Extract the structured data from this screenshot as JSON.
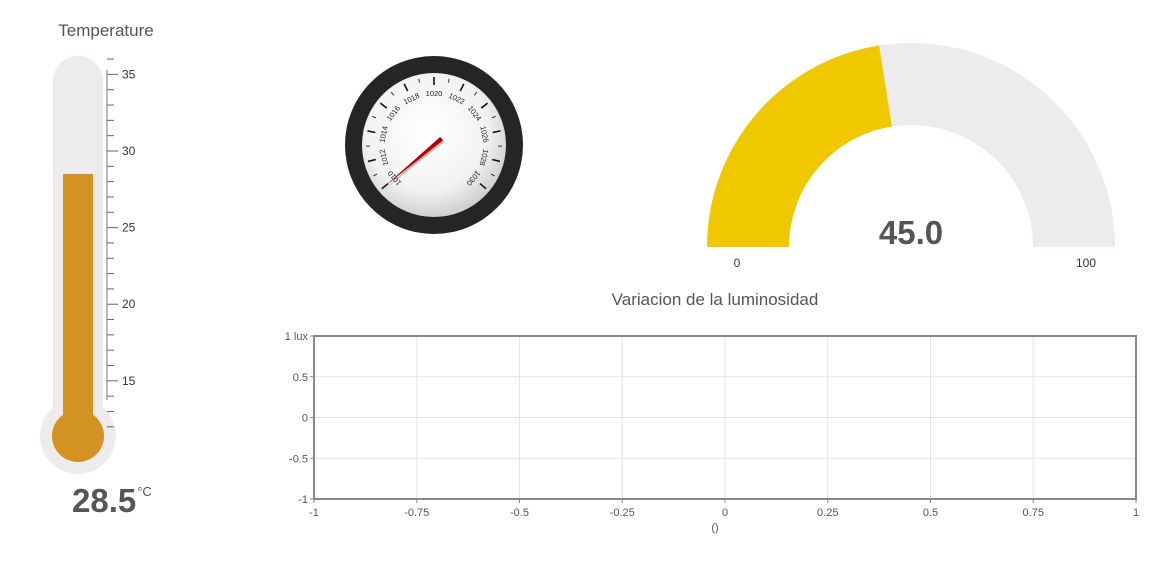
{
  "thermometer": {
    "title": "Temperature",
    "value": "28.5",
    "unit": "°C",
    "level": 28.5,
    "scale_min": 11.4,
    "scale_max": 36.2,
    "major_ticks": [
      35,
      30,
      25,
      20,
      15
    ],
    "tick_labels": [
      "35",
      "30",
      "25",
      "20",
      "15"
    ],
    "fill_color": "#D39322",
    "track_color": "#EDEBEB"
  },
  "barometer": {
    "tick_labels": [
      "1010",
      "1012",
      "1014",
      "1016",
      "1018",
      "1020",
      "1022",
      "1024",
      "1026",
      "1028",
      "1030"
    ],
    "value": 1010,
    "needle_color": "#B80000",
    "rim_color": "#252525"
  },
  "donut_gauge": {
    "value": "45.0",
    "level": 45.0,
    "min_label": "0",
    "max_label": "100",
    "min": 0,
    "max": 100,
    "fill_color": "#F0C800",
    "track_color": "#EDEBEB"
  },
  "luminosity_chart": {
    "title": "Variacion de la luminosidad",
    "chart_data": {
      "type": "line",
      "title": "Variacion de la luminosidad",
      "xlabel": "()",
      "ylabel": "",
      "xlim": [
        -1,
        1
      ],
      "ylim": [
        -1,
        1
      ],
      "x_ticks": [
        -1,
        -0.75,
        -0.5,
        -0.25,
        0,
        0.25,
        0.5,
        0.75,
        1
      ],
      "x_tick_labels": [
        "-1",
        "-0.75",
        "-0.5",
        "-0.25",
        "0",
        "0.25",
        "0.5",
        "0.75",
        "1"
      ],
      "y_ticks": [
        1,
        0.5,
        0,
        -0.5,
        -1
      ],
      "y_tick_labels": [
        "1 lux",
        "0.5",
        "0",
        "-0.5",
        "-1"
      ],
      "grid": true,
      "series": []
    }
  }
}
